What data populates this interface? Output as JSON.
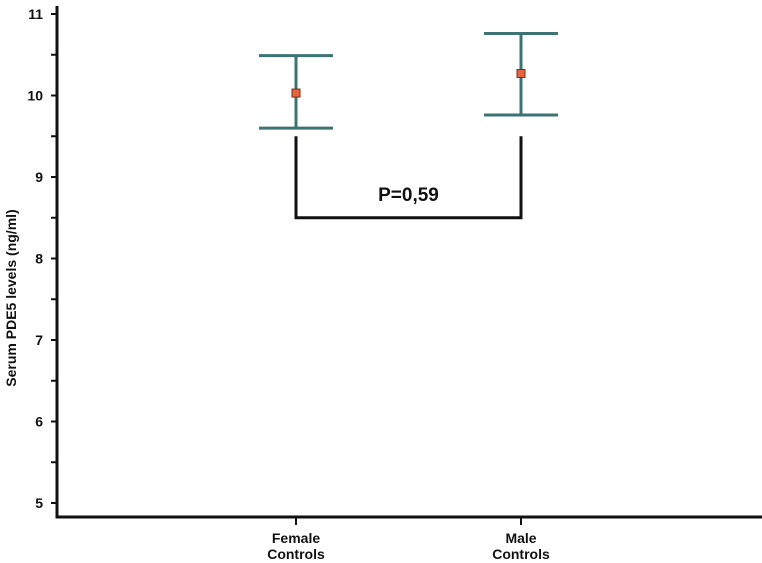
{
  "chart_data": {
    "type": "scatter",
    "title": "",
    "xlabel": "",
    "ylabel": "Serum PDE5 levels (ng/ml)",
    "ylim": [
      5,
      11
    ],
    "yticks": [
      5,
      6,
      7,
      8,
      9,
      10,
      11
    ],
    "categories": [
      {
        "label_line1": "Female",
        "label_line2": "Controls"
      },
      {
        "label_line1": "Male",
        "label_line2": "Controls"
      }
    ],
    "series": [
      {
        "values": [
          10.03,
          10.27
        ],
        "lower": [
          9.6,
          9.76
        ],
        "upper": [
          10.49,
          10.76
        ]
      }
    ],
    "comparison": {
      "between": [
        0,
        1
      ],
      "label": "P=0,59",
      "bracket_y": 8.5,
      "bracket_top": [
        9.5,
        9.5
      ]
    },
    "colors": {
      "errorbar": "#3d7373",
      "marker_fill": "#e8643c",
      "marker_stroke": "#7a2e14",
      "axis": "#111111"
    },
    "grid": false,
    "legend": "none"
  }
}
